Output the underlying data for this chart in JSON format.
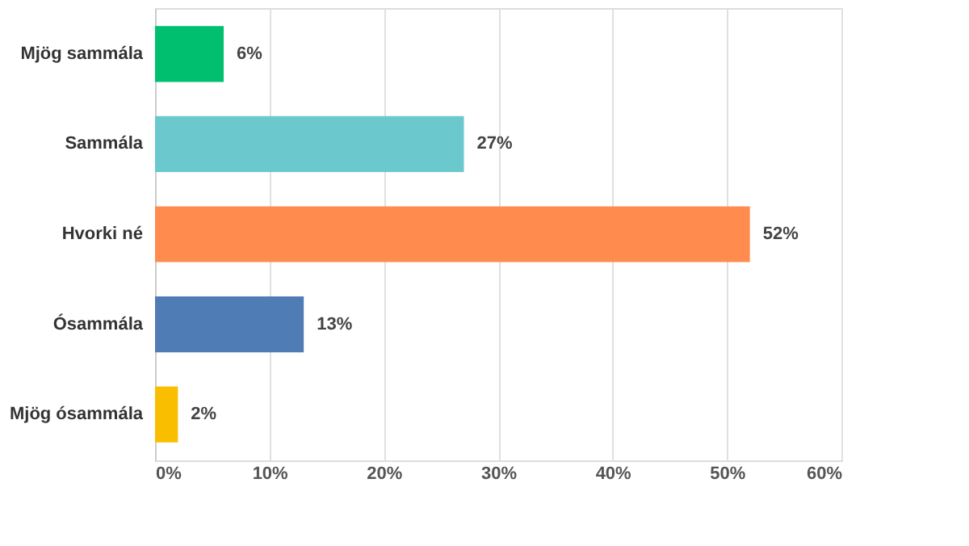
{
  "chart_data": {
    "type": "bar",
    "orientation": "horizontal",
    "categories": [
      "Mjög sammála",
      "Sammála",
      "Hvorki né",
      "Ósammála",
      "Mjög ósammála"
    ],
    "values": [
      6,
      27,
      52,
      13,
      2
    ],
    "colors": [
      "#00bf6f",
      "#6bc8cd",
      "#ff8b4f",
      "#507cb6",
      "#f9be00"
    ],
    "value_labels": [
      "6%",
      "27%",
      "52%",
      "13%",
      "2%"
    ],
    "xlim": [
      0,
      60
    ],
    "xticks": [
      {
        "value": 0,
        "label": "0%"
      },
      {
        "value": 10,
        "label": "10%"
      },
      {
        "value": 20,
        "label": "20%"
      },
      {
        "value": 30,
        "label": "30%"
      },
      {
        "value": 40,
        "label": "40%"
      },
      {
        "value": 50,
        "label": "50%"
      },
      {
        "value": 60,
        "label": "60%"
      }
    ],
    "grid": "x"
  }
}
